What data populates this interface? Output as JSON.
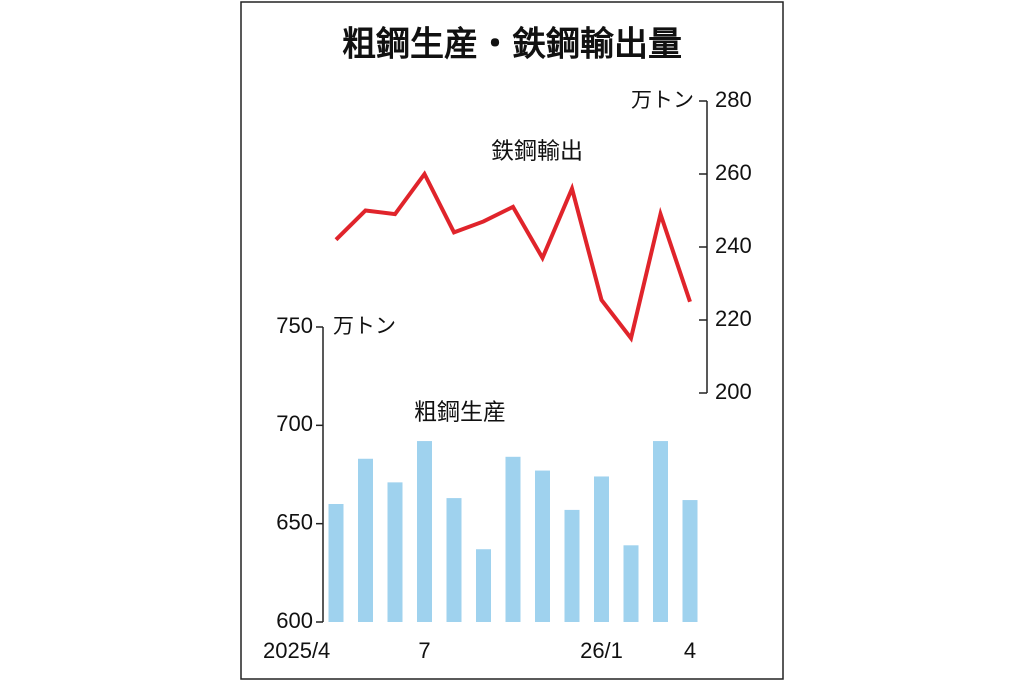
{
  "title": "粗鋼生産・鉄鋼輸出量",
  "chart_data": [
    {
      "type": "line",
      "y_unit": "万トン",
      "series": [
        {
          "name": "鉄鋼輸出",
          "color": "#e0242b",
          "axis": "y2",
          "values": [
            242,
            250,
            249,
            260,
            244,
            247,
            251,
            237,
            256,
            225.5,
            215,
            249,
            225
          ]
        }
      ],
      "y2lim": [
        200,
        280
      ],
      "y2ticks": [
        200,
        220,
        240,
        260,
        280
      ]
    },
    {
      "type": "bar",
      "y_unit": "万トン",
      "categories": [
        "2025/4",
        null,
        null,
        "7",
        null,
        null,
        null,
        null,
        null,
        "26/1",
        null,
        null,
        "4"
      ],
      "series": [
        {
          "name": "粗鋼生産",
          "color": "#9fd2ee",
          "values": [
            660,
            683,
            671,
            692,
            663,
            637,
            684,
            677,
            657,
            674,
            639,
            692,
            662
          ]
        }
      ],
      "ylim": [
        600,
        750
      ],
      "yticks": [
        600,
        650,
        700,
        750
      ]
    }
  ]
}
